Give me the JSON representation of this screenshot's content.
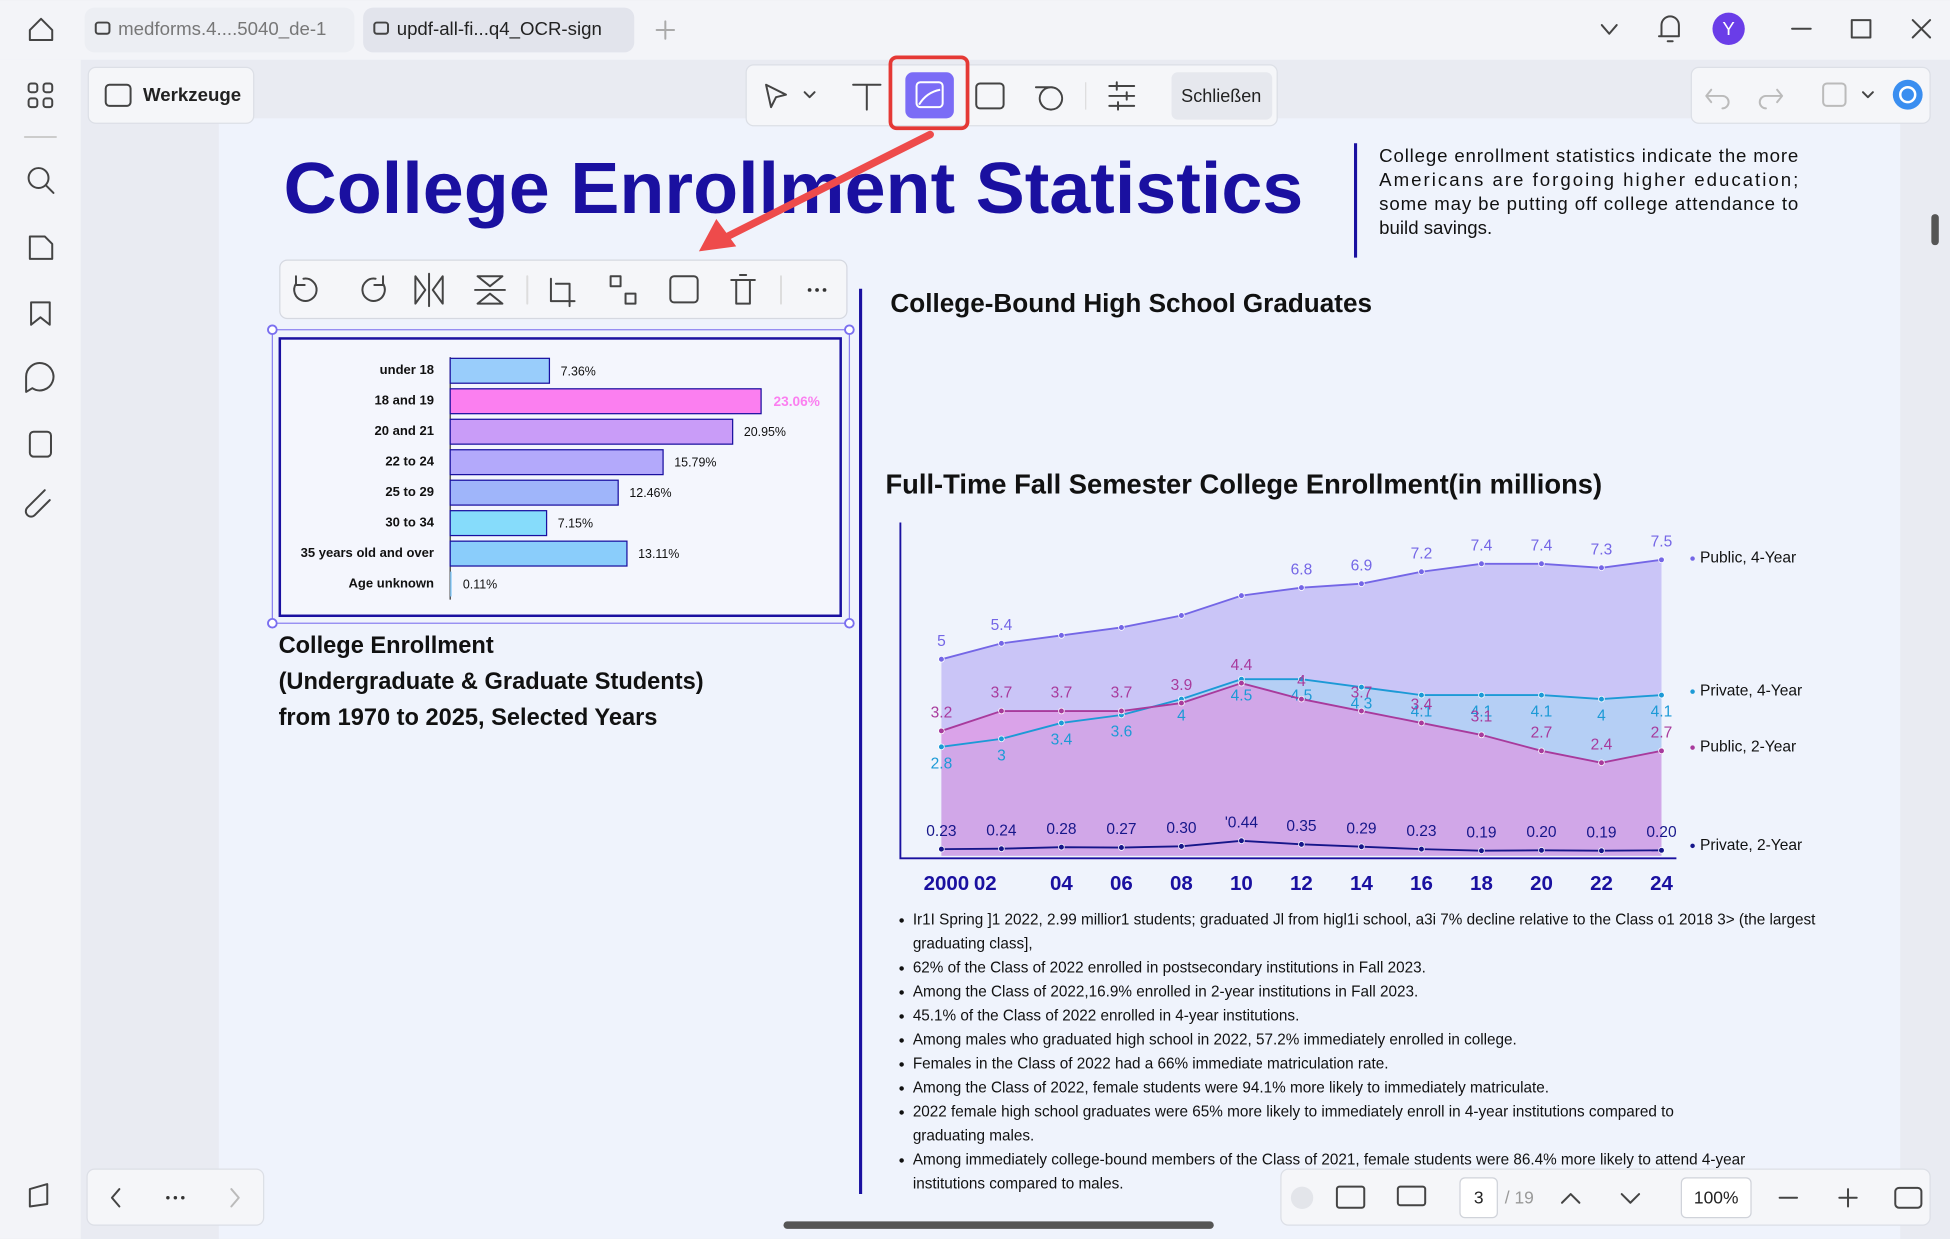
{
  "tabs": [
    "medforms.4....5040_de-1",
    "updf-all-fi...q4_OCR-sign"
  ],
  "avatar": "Y",
  "toolbar": {
    "tools_label": "Werkzeuge",
    "close": "Schließen"
  },
  "document": {
    "title": "College Enrollment Statistics",
    "intro": [
      "College enrollment statistics indicate the more",
      "Americans are forgoing higher education;",
      "some may be putting off college attendance to",
      "build savings."
    ],
    "section_heading": "College-Bound High School Graduates",
    "bar_chart": {
      "type": "bar",
      "orientation": "horizontal",
      "categories": [
        "under 18",
        "18 and 19",
        "20 and 21",
        "22 to 24",
        "25 to 29",
        "30 to 34",
        "35 years old and over",
        "Age unknown"
      ],
      "values": [
        7.36,
        23.06,
        20.95,
        15.79,
        12.46,
        7.15,
        13.11,
        0.11
      ],
      "value_labels": [
        "7.36%",
        "23.06%",
        "20.95%",
        "15.79%",
        "12.46%",
        "7.15%",
        "13.11%",
        "0.11%"
      ],
      "colors": [
        "#99cdfb",
        "#fb7ff0",
        "#c99cf8",
        "#b3a9fb",
        "#9fb5fa",
        "#86dcfb",
        "#8acdfb",
        "#8acdfb"
      ],
      "caption": [
        "College Enrollment",
        "(Undergraduate & Graduate Students)",
        "from 1970 to 2025, Selected Years"
      ]
    },
    "line_chart": {
      "type": "line",
      "title": "Full-Time Fall Semester College Enrollment(in millions)",
      "categories": [
        "2000",
        "02",
        "04",
        "06",
        "08",
        "10",
        "12",
        "14",
        "16",
        "18",
        "20",
        "22",
        "24"
      ],
      "series": [
        {
          "name": "Public, 4-Year",
          "color": "#7466e6",
          "fill": "#c3bcf6",
          "values": [
            5,
            5.4,
            5.6,
            5.8,
            6.1,
            6.6,
            6.8,
            6.9,
            7.2,
            7.4,
            7.4,
            7.3,
            7.5
          ],
          "value_labels": [
            "5",
            "5.4",
            null,
            null,
            null,
            null,
            "6.8",
            "6.9",
            "7.2",
            "7.4",
            "7.4",
            "7.3",
            "7.5"
          ]
        },
        {
          "name": "Private, 4-Year",
          "color": "#1c9ad6",
          "fill": "#a6d6f3",
          "values": [
            2.8,
            3,
            3.4,
            3.6,
            4,
            4.5,
            4.5,
            4.3,
            4.1,
            4.1,
            4.1,
            4,
            4.1
          ],
          "value_labels": [
            "2.8",
            "3",
            "3.4",
            "3.6",
            "4",
            "4.5",
            "4.5",
            "4 3",
            "4.1",
            "4.1",
            "4.1",
            "4",
            "4.1"
          ]
        },
        {
          "name": "Public, 2-Year",
          "color": "#a83a9c",
          "fill": "#e58ce0",
          "values": [
            3.2,
            3.7,
            3.7,
            3.7,
            3.9,
            4.4,
            4,
            3.7,
            3.4,
            3.1,
            2.7,
            2.4,
            2.7
          ],
          "value_labels": [
            "3.2",
            "3.7",
            "3.7",
            "3.7",
            "3.9",
            "4.4",
            "4",
            "3.7",
            "3.4",
            "3.1",
            "2.7",
            "2.4",
            "2.7"
          ]
        },
        {
          "name": "Private, 2-Year",
          "color": "#16168a",
          "fill": null,
          "values": [
            0.23,
            0.24,
            0.28,
            0.27,
            0.3,
            0.44,
            0.35,
            0.29,
            0.23,
            0.19,
            0.2,
            0.19,
            0.2
          ],
          "value_labels": [
            "0.23",
            "0.24",
            "0.28",
            "0.27",
            "0.30",
            "'0.44",
            "0.35",
            "0.29",
            "0.23",
            "0.19",
            "0.20",
            "0.19",
            "0.20"
          ]
        }
      ]
    },
    "bullets": [
      [
        "Ir1I Spring ]1 2022, 2.99 millior1 students; graduated Jl from higl1i school, a3i 7% decline relative to the Class o1 2018 3> (the largest",
        "graduating class],"
      ],
      [
        "62% of the Class of 2022 enrolled in postsecondary institutions in Fall 2023."
      ],
      [
        "Among the Class of 2022,16.9% enrolled in 2-year institutions in Fall 2023."
      ],
      [
        "45.1% of the Class of 2022 enrolled in 4-year institutions."
      ],
      [
        "Among males who graduated high school in 2022, 57.2% immediately enrolled in college."
      ],
      [
        "Females in the Class of 2022 had a 66% immediate matriculation rate."
      ],
      [
        "Among the Class of 2022, female students were 94.1% more likely to immediately matriculate."
      ],
      [
        "2022 female high school graduates were 65% more likely to immediately enroll in 4-year institutions compared to",
        "graduating males."
      ],
      [
        "Among immediately college-bound members of the Class of 2021, female students were 86.4% more likely to attend 4-year",
        "institutions compared to males."
      ]
    ]
  },
  "footer": {
    "page": "3",
    "total": "/ 19",
    "zoom": "100%"
  }
}
